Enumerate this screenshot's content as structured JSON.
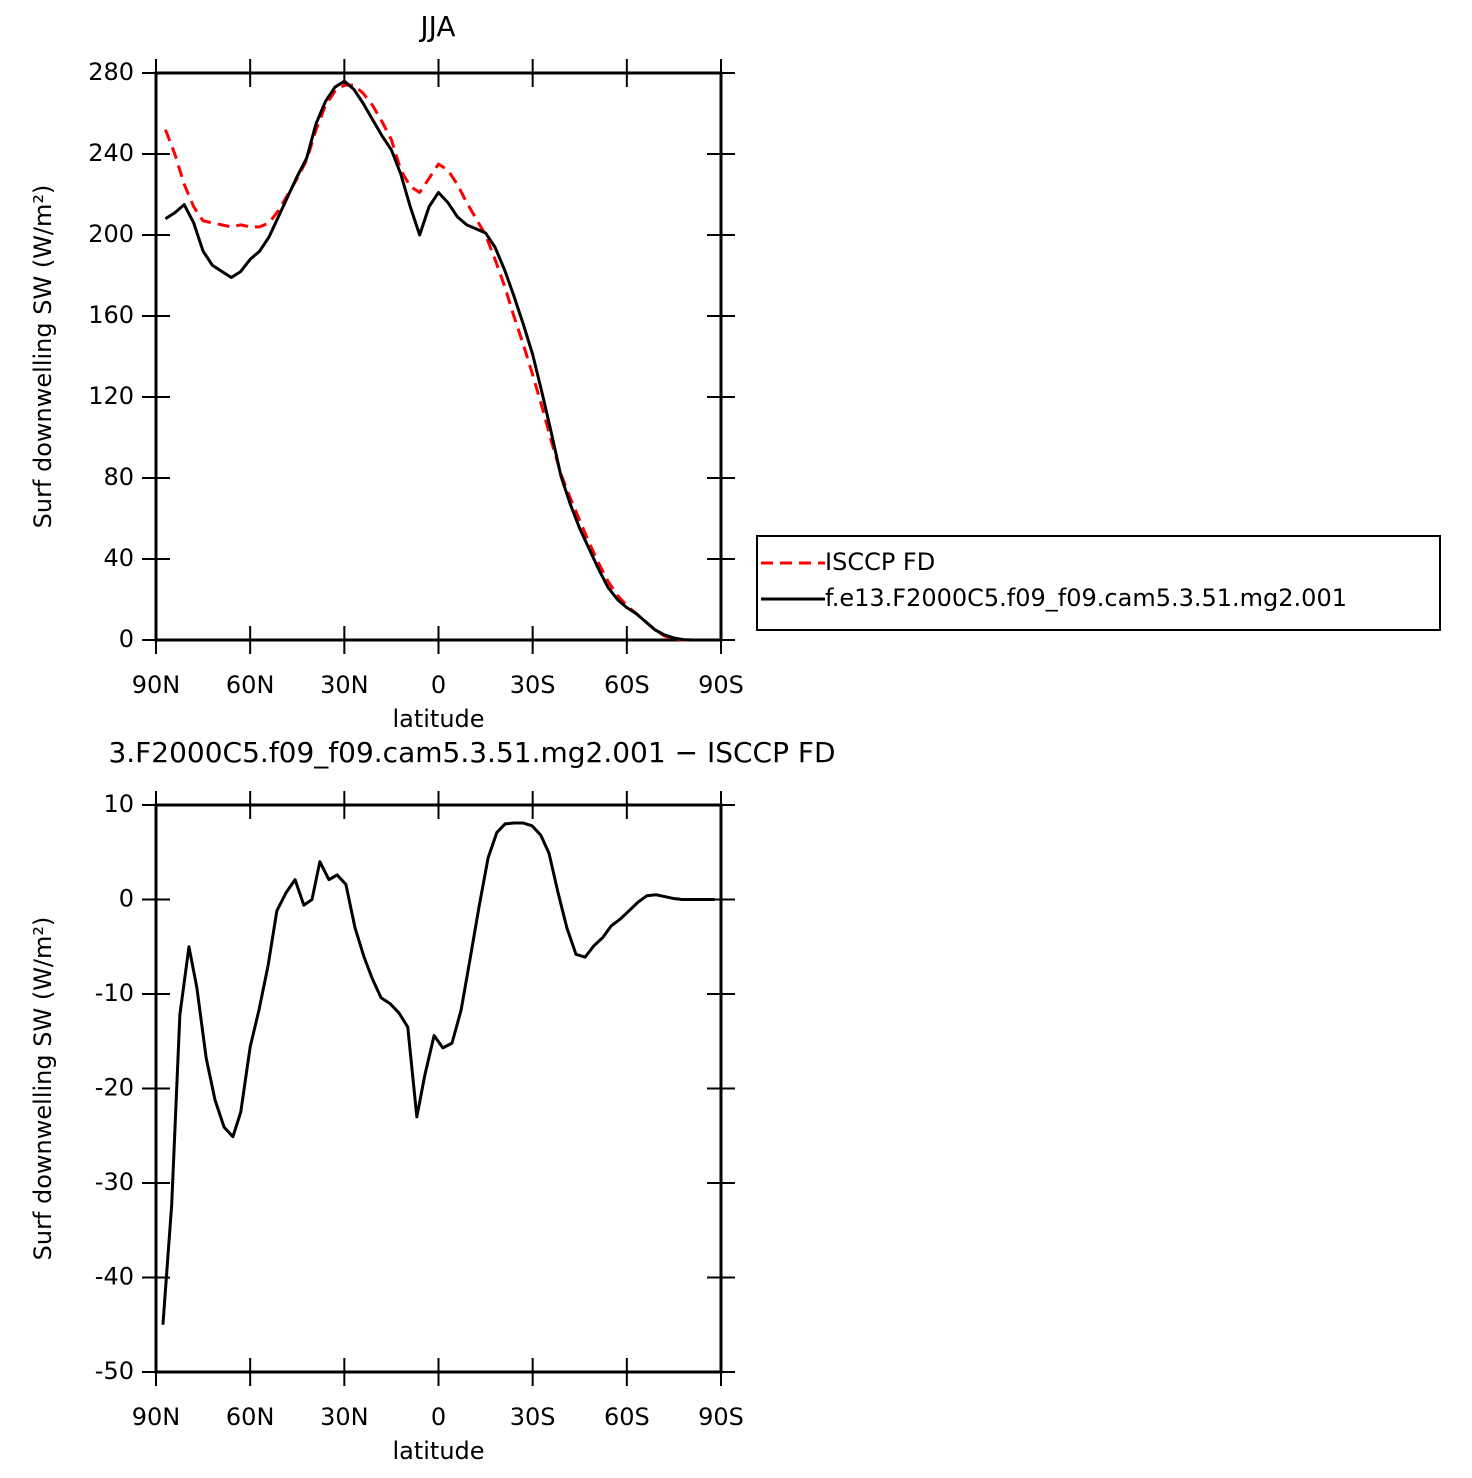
{
  "chart_data": [
    {
      "type": "line",
      "title": "JJA",
      "xlabel": "latitude",
      "ylabel": "Surf downwelling SW (W/m²)",
      "xlim": [
        90,
        -90
      ],
      "xticks": [
        {
          "value": 90,
          "label": "90N"
        },
        {
          "value": 60,
          "label": "60N"
        },
        {
          "value": 30,
          "label": "30N"
        },
        0,
        {
          "value": -30,
          "label": "30S"
        },
        {
          "value": -60,
          "label": "60S"
        },
        {
          "value": -90,
          "label": "90S"
        }
      ],
      "ylim": [
        0,
        280
      ],
      "yticks": [
        0,
        40,
        80,
        120,
        160,
        200,
        240,
        280
      ],
      "legend": "right",
      "x": [
        87,
        84,
        81,
        78,
        75,
        72,
        69,
        66,
        63,
        60,
        57,
        54,
        51,
        48,
        45,
        42,
        39,
        36,
        33,
        30,
        27,
        24,
        21,
        18,
        15,
        12,
        9,
        6,
        3,
        0,
        -3,
        -6,
        -9,
        -12,
        -15,
        -18,
        -21,
        -24,
        -27,
        -30,
        -33,
        -36,
        -39,
        -42,
        -45,
        -48,
        -51,
        -54,
        -57,
        -60,
        -63,
        -66,
        -69,
        -72,
        -75,
        -78,
        -81,
        -84,
        -87
      ],
      "series": [
        {
          "name": "ISCCP FD",
          "color": "#ff0000",
          "dashed": true,
          "values": [
            252,
            240,
            225,
            214,
            207,
            206,
            205,
            204,
            205,
            204,
            204,
            206,
            212,
            220,
            228,
            237,
            252,
            264,
            271,
            274,
            274,
            270,
            264,
            256,
            247,
            232,
            224,
            221,
            228,
            235,
            232,
            225,
            216,
            208,
            200,
            188,
            175,
            160,
            146,
            131,
            115,
            98,
            82,
            70,
            59,
            48,
            38,
            29,
            22,
            17,
            13,
            9,
            5,
            2,
            0.5,
            0,
            0,
            0,
            0
          ]
        },
        {
          "name": "f.e13.F2000C5.f09_f09.cam5.3.51.mg2.001",
          "color": "#000000",
          "dashed": false,
          "values": [
            208,
            211,
            215,
            206,
            192,
            185,
            182,
            179,
            182,
            188,
            192,
            199,
            209,
            219,
            229,
            238,
            255,
            266,
            273,
            276,
            272,
            265,
            257,
            249,
            242,
            230,
            214,
            200,
            214,
            221,
            216,
            209,
            205,
            203,
            201,
            194,
            183,
            170,
            156,
            141,
            122,
            102,
            81,
            67,
            55,
            45,
            35,
            26,
            20,
            16,
            13,
            9,
            5,
            2.5,
            1,
            0.2,
            0,
            0,
            0
          ]
        }
      ]
    },
    {
      "type": "line",
      "title": "3.F2000C5.f09_f09.cam5.3.51.mg2.001 − ISCCP FD",
      "xlabel": "latitude",
      "ylabel": "Surf downwelling SW (W/m²)",
      "xlim": [
        90,
        -90
      ],
      "xticks": [
        {
          "value": 90,
          "label": "90N"
        },
        {
          "value": 60,
          "label": "60N"
        },
        {
          "value": 30,
          "label": "30N"
        },
        0,
        {
          "value": -30,
          "label": "30S"
        },
        {
          "value": -60,
          "label": "60S"
        },
        {
          "value": -90,
          "label": "90S"
        }
      ],
      "ylim": [
        -50,
        10
      ],
      "yticks": [
        -50,
        -40,
        -30,
        -20,
        -10,
        0,
        10
      ],
      "x": [
        87.8,
        85,
        82.4,
        79.5,
        77,
        74,
        71.2,
        68.3,
        65.5,
        63,
        60,
        57.2,
        54.3,
        51.5,
        48.6,
        45.7,
        42.9,
        40.3,
        37.8,
        34.9,
        32.3,
        29.5,
        26.6,
        23.7,
        21.2,
        18.3,
        15.5,
        12.6,
        9.8,
        6.9,
        4.3,
        1.4,
        -1.4,
        -4.3,
        -7.2,
        -10,
        -12.9,
        -15.8,
        -18.6,
        -21.2,
        -24,
        -26.9,
        -29.8,
        -32.6,
        -35.2,
        -38.1,
        -40.9,
        -43.8,
        -46.7,
        -49.5,
        -52.4,
        -55,
        -57.8,
        -60.7,
        -63.5,
        -66.4,
        -69.3,
        -72.2,
        -75,
        -77.6,
        -80.5,
        -83.3,
        -86.2,
        -88
      ],
      "series": [
        {
          "color": "#000000",
          "dashed": false,
          "values": [
            -45,
            -32.3,
            -12.2,
            -5,
            -9.3,
            -16.8,
            -21.2,
            -24.1,
            -25.1,
            -22.5,
            -15.6,
            -11.7,
            -7,
            -1.2,
            0.7,
            2.1,
            -0.6,
            0,
            4,
            2.1,
            2.6,
            1.6,
            -3,
            -6.1,
            -8.3,
            -10.4,
            -11,
            -12,
            -13.5,
            -23,
            -18.5,
            -14.4,
            -15.7,
            -15.2,
            -11.7,
            -6.4,
            -0.8,
            4.4,
            7.1,
            8,
            8.1,
            8.1,
            7.8,
            6.8,
            4.9,
            0.7,
            -3,
            -5.8,
            -6.1,
            -4.9,
            -4,
            -2.8,
            -2.1,
            -1.2,
            -0.3,
            0.4,
            0.5,
            0.3,
            0.1,
            0,
            0,
            0,
            0,
            0
          ]
        }
      ]
    }
  ]
}
